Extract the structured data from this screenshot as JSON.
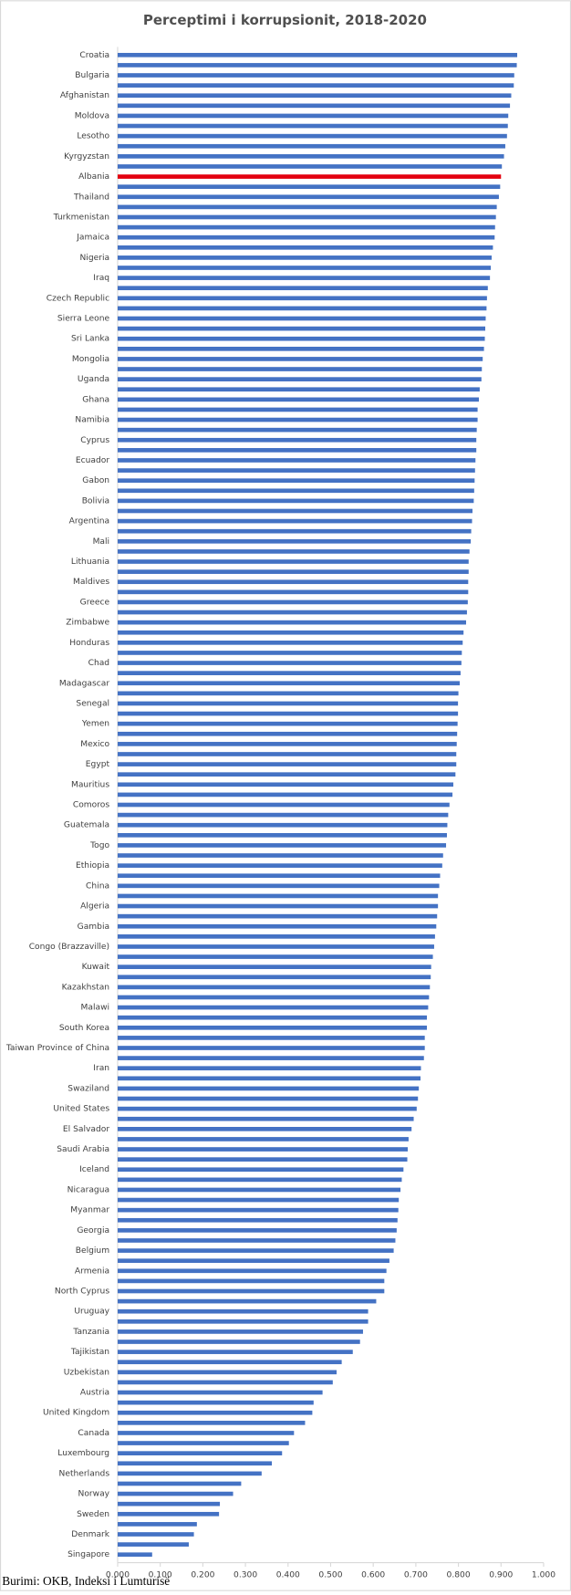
{
  "chart_data": {
    "type": "bar",
    "orientation": "horizontal",
    "title": "Perceptimi i korrupsionit, 2018-2020",
    "source": "Burimi: OKB, Indeksi i Lumturisë",
    "color": "#4472c4",
    "highlight": {
      "category": "Albania",
      "color": "#e3000f"
    },
    "grid": false,
    "xlim": [
      0,
      1
    ],
    "xticks": [
      {
        "value": 0,
        "label": "0.000"
      },
      {
        "value": 0.1,
        "label": "0.100"
      },
      {
        "value": 0.2,
        "label": "0.200"
      },
      {
        "value": 0.3,
        "label": "0.300"
      },
      {
        "value": 0.4,
        "label": "0.400"
      },
      {
        "value": 0.5,
        "label": "0.500"
      },
      {
        "value": 0.6,
        "label": "0.600"
      },
      {
        "value": 0.7,
        "label": "0.700"
      },
      {
        "value": 0.8,
        "label": "0.800"
      },
      {
        "value": 0.9,
        "label": "0.900"
      },
      {
        "value": 1,
        "label": "1.000"
      }
    ],
    "categories": [
      "Croatia",
      null,
      "Bulgaria",
      null,
      "Afghanistan",
      null,
      "Moldova",
      null,
      "Lesotho",
      null,
      "Kyrgyzstan",
      null,
      "Albania",
      null,
      "Thailand",
      null,
      "Turkmenistan",
      null,
      "Jamaica",
      null,
      "Nigeria",
      null,
      "Iraq",
      null,
      "Czech Republic",
      null,
      "Sierra Leone",
      null,
      "Sri Lanka",
      null,
      "Mongolia",
      null,
      "Uganda",
      null,
      "Ghana",
      null,
      "Namibia",
      null,
      "Cyprus",
      null,
      "Ecuador",
      null,
      "Gabon",
      null,
      "Bolivia",
      null,
      "Argentina",
      null,
      "Mali",
      null,
      "Lithuania",
      null,
      "Maldives",
      null,
      "Greece",
      null,
      "Zimbabwe",
      null,
      "Honduras",
      null,
      "Chad",
      null,
      "Madagascar",
      null,
      "Senegal",
      null,
      "Yemen",
      null,
      "Mexico",
      null,
      "Egypt",
      null,
      "Mauritius",
      null,
      "Comoros",
      null,
      "Guatemala",
      null,
      "Togo",
      null,
      "Ethiopia",
      null,
      "China",
      null,
      "Algeria",
      null,
      "Gambia",
      null,
      "Congo (Brazzaville)",
      null,
      "Kuwait",
      null,
      "Kazakhstan",
      null,
      "Malawi",
      null,
      "South Korea",
      null,
      "Taiwan Province of China",
      null,
      "Iran",
      null,
      "Swaziland",
      null,
      "United States",
      null,
      "El Salvador",
      null,
      "Saudi Arabia",
      null,
      "Iceland",
      null,
      "Nicaragua",
      null,
      "Myanmar",
      null,
      "Georgia",
      null,
      "Belgium",
      null,
      "Armenia",
      null,
      "North Cyprus",
      null,
      "Uruguay",
      null,
      "Tanzania",
      null,
      "Tajikistan",
      null,
      "Uzbekistan",
      null,
      "Austria",
      null,
      "United Kingdom",
      null,
      "Canada",
      null,
      "Luxembourg",
      null,
      "Netherlands",
      null,
      "Norway",
      null,
      "Sweden",
      null,
      "Denmark",
      null,
      "Singapore"
    ],
    "values": [
      0.938,
      0.937,
      0.931,
      0.93,
      0.924,
      0.921,
      0.917,
      0.916,
      0.914,
      0.91,
      0.907,
      0.902,
      0.9,
      0.898,
      0.895,
      0.89,
      0.888,
      0.886,
      0.885,
      0.881,
      0.878,
      0.876,
      0.874,
      0.869,
      0.867,
      0.866,
      0.864,
      0.863,
      0.862,
      0.86,
      0.857,
      0.855,
      0.854,
      0.85,
      0.848,
      0.845,
      0.845,
      0.843,
      0.842,
      0.842,
      0.84,
      0.839,
      0.838,
      0.837,
      0.836,
      0.833,
      0.832,
      0.83,
      0.829,
      0.826,
      0.824,
      0.824,
      0.823,
      0.823,
      0.822,
      0.82,
      0.818,
      0.812,
      0.81,
      0.808,
      0.807,
      0.805,
      0.803,
      0.8,
      0.799,
      0.799,
      0.798,
      0.797,
      0.796,
      0.795,
      0.795,
      0.793,
      0.788,
      0.786,
      0.779,
      0.776,
      0.774,
      0.773,
      0.771,
      0.764,
      0.762,
      0.757,
      0.755,
      0.752,
      0.752,
      0.75,
      0.748,
      0.745,
      0.743,
      0.74,
      0.736,
      0.735,
      0.733,
      0.731,
      0.729,
      0.726,
      0.726,
      0.721,
      0.721,
      0.719,
      0.712,
      0.711,
      0.707,
      0.705,
      0.702,
      0.695,
      0.69,
      0.683,
      0.681,
      0.68,
      0.671,
      0.667,
      0.664,
      0.66,
      0.659,
      0.657,
      0.655,
      0.652,
      0.648,
      0.638,
      0.631,
      0.626,
      0.626,
      0.607,
      0.588,
      0.588,
      0.576,
      0.569,
      0.552,
      0.526,
      0.514,
      0.505,
      0.481,
      0.46,
      0.457,
      0.44,
      0.414,
      0.402,
      0.386,
      0.362,
      0.338,
      0.29,
      0.271,
      0.24,
      0.238,
      0.186,
      0.179,
      0.167,
      0.081
    ]
  }
}
